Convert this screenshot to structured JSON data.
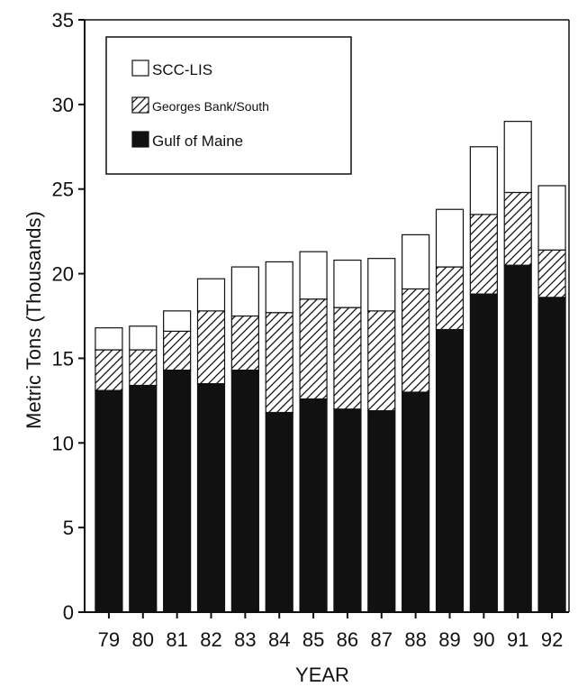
{
  "chart_data": {
    "type": "bar",
    "stacked": true,
    "title": "",
    "xlabel": "YEAR",
    "ylabel": "Metric Tons (Thousands)",
    "ylim": [
      0,
      35
    ],
    "yticks": [
      0,
      5,
      10,
      15,
      20,
      25,
      30,
      35
    ],
    "categories": [
      "79",
      "80",
      "81",
      "82",
      "83",
      "84",
      "85",
      "86",
      "87",
      "88",
      "89",
      "90",
      "91",
      "92"
    ],
    "series": [
      {
        "name": "Gulf of Maine",
        "pattern": "solid-black",
        "values": [
          13.1,
          13.4,
          14.3,
          13.5,
          14.3,
          11.8,
          12.6,
          12.0,
          11.9,
          13.0,
          16.7,
          18.8,
          20.5,
          18.6
        ]
      },
      {
        "name": "Georges Bank/South",
        "pattern": "diagonal-hatch",
        "values": [
          2.4,
          2.1,
          2.3,
          4.3,
          3.2,
          5.9,
          5.9,
          6.0,
          5.9,
          6.1,
          3.7,
          4.7,
          4.3,
          2.8
        ]
      },
      {
        "name": "SCC-LIS",
        "pattern": "white",
        "values": [
          1.3,
          1.4,
          1.2,
          1.9,
          2.9,
          3.0,
          2.8,
          2.8,
          3.1,
          3.2,
          3.4,
          4.0,
          4.2,
          3.8
        ]
      }
    ],
    "legend": {
      "placement": "top-left",
      "order": [
        "SCC-LIS",
        "Georges Bank/South",
        "Gulf of Maine"
      ]
    },
    "grid": false,
    "colors": {
      "ink": "#111111",
      "background": "#ffffff"
    }
  }
}
